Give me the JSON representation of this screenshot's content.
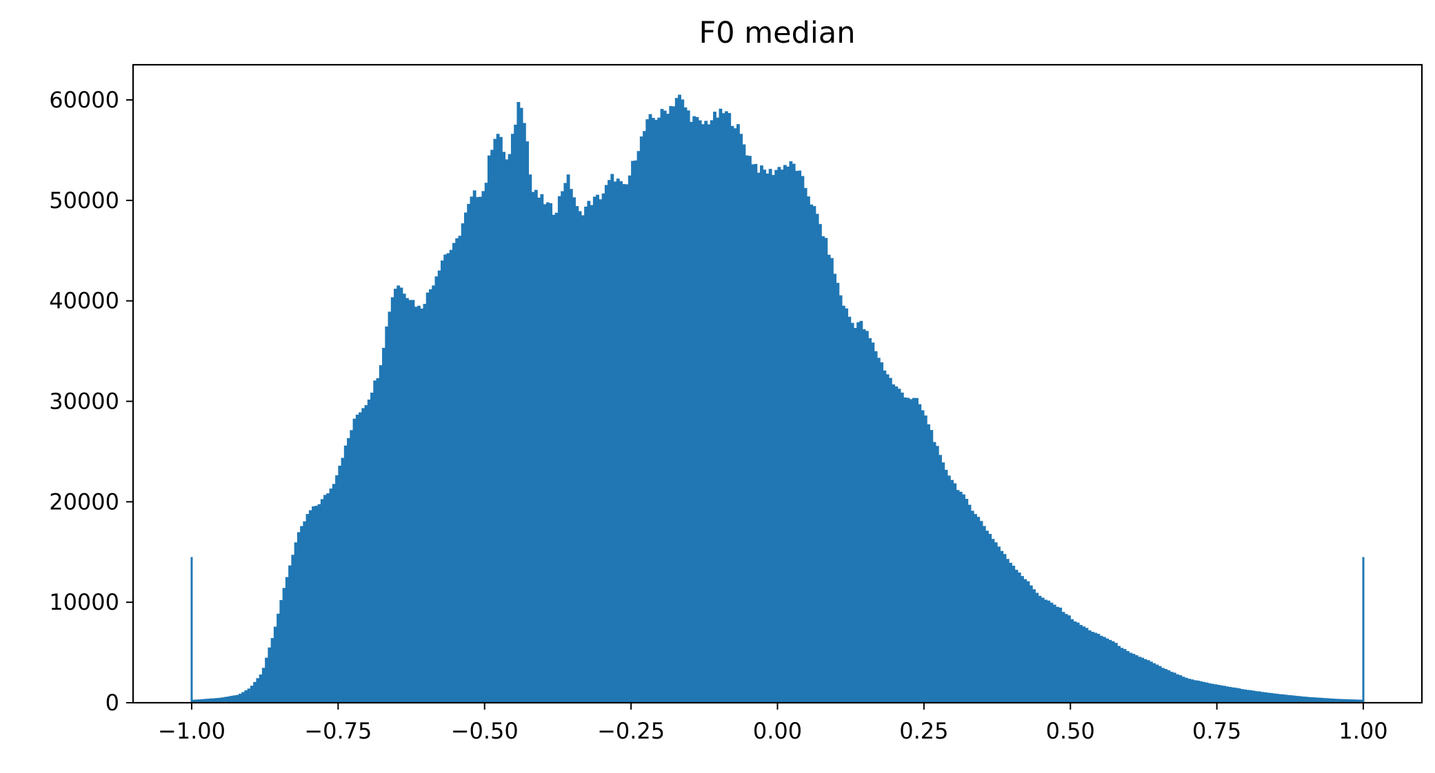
{
  "chart_data": {
    "type": "bar",
    "subtype": "histogram",
    "title": "F0 median",
    "xlabel": "",
    "ylabel": "",
    "xlim": [
      -1.1,
      1.1
    ],
    "ylim": [
      0,
      63500
    ],
    "xticks": [
      -1.0,
      -0.75,
      -0.5,
      -0.25,
      0.0,
      0.25,
      0.5,
      0.75,
      1.0
    ],
    "xtick_labels": [
      "−1.00",
      "−0.75",
      "−0.50",
      "−0.25",
      "0.00",
      "0.25",
      "0.50",
      "0.75",
      "1.00"
    ],
    "yticks": [
      0,
      10000,
      20000,
      30000,
      40000,
      50000,
      60000
    ],
    "ytick_labels": [
      "0",
      "10000",
      "20000",
      "30000",
      "40000",
      "50000",
      "60000"
    ],
    "grid": false,
    "legend": "none",
    "bar_color": "#2077b4",
    "bin_range": [
      -1.0,
      1.0
    ],
    "bin_width": 0.005,
    "bin_centers_sample_x": [
      -1.0,
      -0.95,
      -0.9,
      -0.85,
      -0.8,
      -0.75,
      -0.7,
      -0.65,
      -0.6,
      -0.55,
      -0.5,
      -0.45,
      -0.4,
      -0.35,
      -0.3,
      -0.25,
      -0.2,
      -0.15,
      -0.1,
      -0.05,
      0.0,
      0.05,
      0.1,
      0.15,
      0.2,
      0.25,
      0.3,
      0.35,
      0.4,
      0.45,
      0.5,
      0.55,
      0.6,
      0.65,
      0.7,
      0.75,
      0.8,
      0.85,
      0.9,
      0.95,
      1.0
    ],
    "counts_profile": [
      [
        -0.995,
        300
      ],
      [
        -0.95,
        500
      ],
      [
        -0.92,
        800
      ],
      [
        -0.9,
        1500
      ],
      [
        -0.88,
        3000
      ],
      [
        -0.86,
        7000
      ],
      [
        -0.84,
        12000
      ],
      [
        -0.82,
        16500
      ],
      [
        -0.8,
        19000
      ],
      [
        -0.78,
        20000
      ],
      [
        -0.76,
        21500
      ],
      [
        -0.74,
        25000
      ],
      [
        -0.72,
        28500
      ],
      [
        -0.7,
        30000
      ],
      [
        -0.68,
        33000
      ],
      [
        -0.66,
        40000
      ],
      [
        -0.65,
        41800
      ],
      [
        -0.63,
        40500
      ],
      [
        -0.61,
        39200
      ],
      [
        -0.59,
        41500
      ],
      [
        -0.57,
        44500
      ],
      [
        -0.55,
        45500
      ],
      [
        -0.53,
        49000
      ],
      [
        -0.52,
        50500
      ],
      [
        -0.5,
        51000
      ],
      [
        -0.49,
        55000
      ],
      [
        -0.48,
        57000
      ],
      [
        -0.47,
        55500
      ],
      [
        -0.46,
        53500
      ],
      [
        -0.45,
        57000
      ],
      [
        -0.44,
        60500
      ],
      [
        -0.43,
        57500
      ],
      [
        -0.42,
        51000
      ],
      [
        -0.4,
        50000
      ],
      [
        -0.38,
        48800
      ],
      [
        -0.36,
        52500
      ],
      [
        -0.35,
        51000
      ],
      [
        -0.34,
        48500
      ],
      [
        -0.32,
        49800
      ],
      [
        -0.3,
        50500
      ],
      [
        -0.28,
        52500
      ],
      [
        -0.26,
        51000
      ],
      [
        -0.24,
        55000
      ],
      [
        -0.22,
        58000
      ],
      [
        -0.2,
        58500
      ],
      [
        -0.18,
        59500
      ],
      [
        -0.17,
        60500
      ],
      [
        -0.15,
        58500
      ],
      [
        -0.13,
        57500
      ],
      [
        -0.11,
        58200
      ],
      [
        -0.09,
        58800
      ],
      [
        -0.07,
        57500
      ],
      [
        -0.05,
        54500
      ],
      [
        -0.03,
        53000
      ],
      [
        -0.01,
        52800
      ],
      [
        0.01,
        53500
      ],
      [
        0.03,
        53500
      ],
      [
        0.05,
        51000
      ],
      [
        0.07,
        48000
      ],
      [
        0.09,
        44500
      ],
      [
        0.11,
        40000
      ],
      [
        0.13,
        37500
      ],
      [
        0.14,
        38000
      ],
      [
        0.16,
        36000
      ],
      [
        0.18,
        33500
      ],
      [
        0.2,
        31500
      ],
      [
        0.22,
        30500
      ],
      [
        0.24,
        30000
      ],
      [
        0.26,
        27500
      ],
      [
        0.28,
        24000
      ],
      [
        0.3,
        22000
      ],
      [
        0.33,
        19500
      ],
      [
        0.36,
        17000
      ],
      [
        0.39,
        14500
      ],
      [
        0.42,
        12500
      ],
      [
        0.45,
        10500
      ],
      [
        0.48,
        9500
      ],
      [
        0.51,
        8000
      ],
      [
        0.54,
        7000
      ],
      [
        0.57,
        6200
      ],
      [
        0.6,
        5000
      ],
      [
        0.63,
        4300
      ],
      [
        0.66,
        3400
      ],
      [
        0.7,
        2400
      ],
      [
        0.75,
        1800
      ],
      [
        0.8,
        1300
      ],
      [
        0.85,
        900
      ],
      [
        0.9,
        600
      ],
      [
        0.95,
        400
      ],
      [
        0.995,
        300
      ]
    ],
    "edge_spikes": [
      {
        "x": -1.0,
        "value": 14500
      },
      {
        "x": 1.0,
        "value": 14500
      }
    ]
  }
}
